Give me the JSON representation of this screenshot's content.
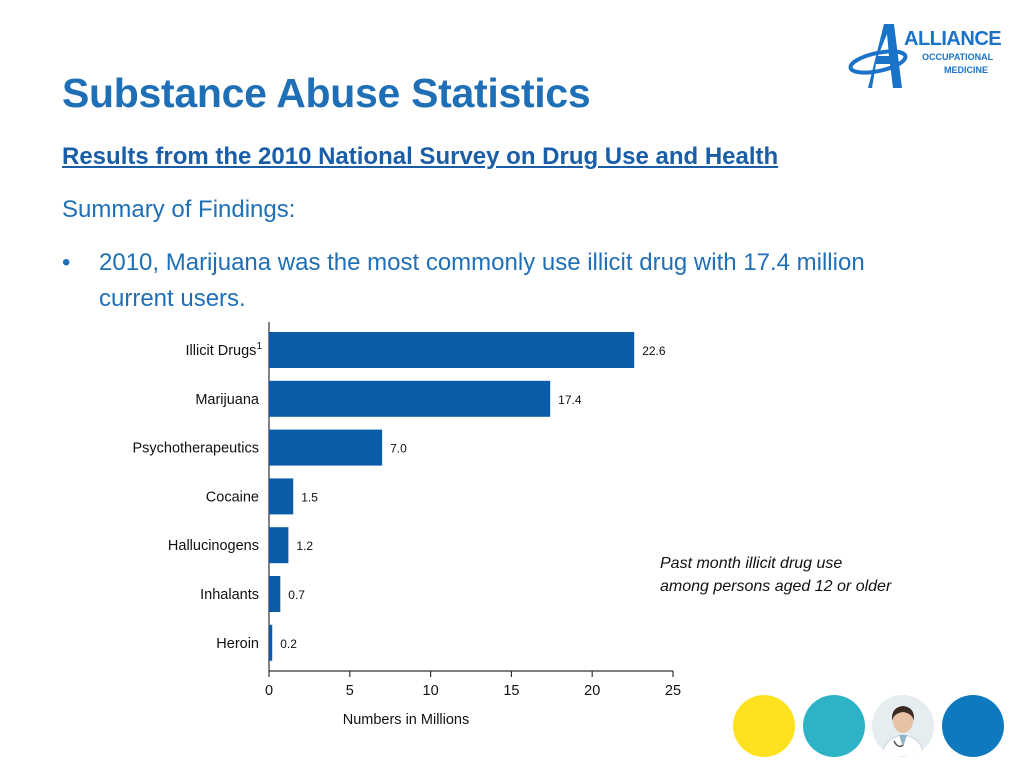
{
  "slide": {
    "title": "Substance Abuse Statistics",
    "subtitle": "Results from the 2010 National Survey on Drug Use and Health",
    "summary": "Summary of Findings:",
    "bullet_symbol": "•",
    "bullet_text": "2010, Marijuana was the most commonly use illicit drug with 17.4 million current users.",
    "note_line1": "Past month illicit drug use",
    "note_line2": "among persons aged 12 or older"
  },
  "logo": {
    "main": "ALLIANCE",
    "sub1": "OCCUPATIONAL",
    "sub2": "MEDICINE",
    "color": "#1a73c8"
  },
  "decor": {
    "circle_colors": [
      "#ffe21f",
      "#2cb3c6",
      "#0f79bf"
    ],
    "photo_icon": "doctor-photo-icon"
  },
  "chart_data": {
    "type": "bar",
    "orientation": "horizontal",
    "categories": [
      "Illicit Drugs",
      "Marijuana",
      "Psychotherapeutics",
      "Cocaine",
      "Hallucinogens",
      "Inhalants",
      "Heroin"
    ],
    "footnote_marks": [
      "1",
      "",
      "",
      "",
      "",
      "",
      ""
    ],
    "values": [
      22.6,
      17.4,
      7.0,
      1.5,
      1.2,
      0.7,
      0.2
    ],
    "value_labels": [
      "22.6",
      "17.4",
      "7.0",
      "1.5",
      "1.2",
      "0.7",
      "0.2"
    ],
    "xlabel": "Numbers in Millions",
    "xlim": [
      0,
      25
    ],
    "xticks": [
      0,
      5,
      10,
      15,
      20,
      25
    ],
    "grid": false,
    "bar_color": "#0a5ca8"
  }
}
